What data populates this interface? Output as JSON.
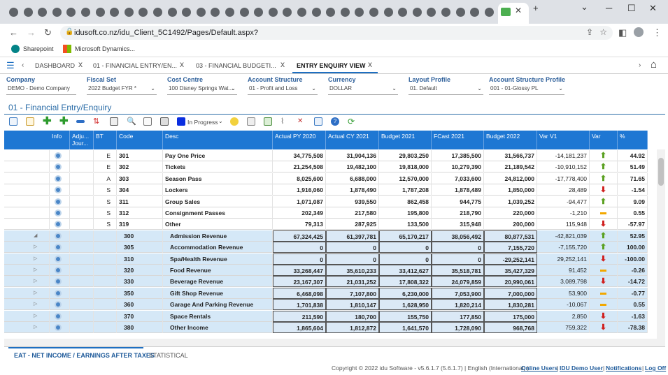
{
  "browser": {
    "address_url": "idusoft.co.nz/idu_Client_5C1492/Pages/Default.aspx?",
    "bookmarks": [
      {
        "label": "Sharepoint",
        "icon": "sharepoint-icon"
      },
      {
        "label": "Microsoft Dynamics...",
        "icon": "microsoft-icon"
      }
    ],
    "tab_icons": [
      "app-icon",
      "app-icon",
      "app-icon",
      "app-icon",
      "globe-icon",
      "globe-icon",
      "globe-icon",
      "globe-icon",
      "globe-icon",
      "globe-icon",
      "globe-icon",
      "globe-icon",
      "globe-icon",
      "linkedin-icon",
      "globe-icon",
      "globe-icon",
      "globe-icon",
      "globe-icon",
      "globe-icon",
      "github-icon",
      "app-icon",
      "app-icon",
      "app-icon",
      "app-icon",
      "app-icon",
      "app-icon",
      "gear-icon",
      "google-icon",
      "outlook-icon",
      "word-icon",
      "globe-icon",
      "app-icon",
      "app-icon",
      "spreadsheet-icon"
    ]
  },
  "app": {
    "tabs": [
      {
        "label": "DASHBOARD",
        "x": "X"
      },
      {
        "label": "01 - FINANCIAL ENTRY/EN...",
        "x": "X"
      },
      {
        "label": "03 - FINANCIAL BUDGETI...",
        "x": "X"
      },
      {
        "label": "ENTRY ENQUIRY VIEW",
        "x": "X"
      }
    ],
    "filters": [
      {
        "label": "Company",
        "value": "DEMO - Demo Company"
      },
      {
        "label": "Fiscal Set",
        "value": "2022 Budget FYR *"
      },
      {
        "label": "Cost Centre",
        "value": "100 Disney Springs Wat..."
      },
      {
        "label": "Account Structure",
        "value": "01 - Profit and Loss"
      },
      {
        "label": "Currency",
        "value": "DOLLAR"
      },
      {
        "label": "Layout Profile",
        "value": "01. Default"
      },
      {
        "label": "Account Structure Profile",
        "value": "001 - 01-Glossy PL"
      }
    ],
    "page_title": "01 - Financial Entry/Enquiry",
    "status_select": "In Progress",
    "columns": [
      "Info",
      "Adju... Jour...",
      "BT",
      "Code",
      "Desc",
      "Actual PY 2020",
      "Actual CY 2021",
      "Budget 2021",
      "FCast 2021",
      "Budget 2022",
      "Var V1",
      "Var",
      "%"
    ],
    "rows": [
      {
        "bt": "E",
        "code": "301",
        "desc": "Pay One Price",
        "py": "34,775,508",
        "cy": "31,904,136",
        "b21": "29,803,250",
        "fc": "17,385,500",
        "b22": "31,566,737",
        "var": "-14,181,237",
        "dir": "up",
        "pct": "44.92",
        "blue": false
      },
      {
        "bt": "E",
        "code": "302",
        "desc": "Tickets",
        "py": "21,254,508",
        "cy": "19,482,100",
        "b21": "19,818,000",
        "fc": "10,279,390",
        "b22": "21,189,542",
        "var": "-10,910,152",
        "dir": "up",
        "pct": "51.49",
        "blue": false
      },
      {
        "bt": "A",
        "code": "303",
        "desc": "Season Pass",
        "py": "8,025,600",
        "cy": "6,688,000",
        "b21": "12,570,000",
        "fc": "7,033,600",
        "b22": "24,812,000",
        "var": "-17,778,400",
        "dir": "up",
        "pct": "71.65",
        "blue": false
      },
      {
        "bt": "S",
        "code": "304",
        "desc": "Lockers",
        "py": "1,916,060",
        "cy": "1,878,490",
        "b21": "1,787,208",
        "fc": "1,878,489",
        "b22": "1,850,000",
        "var": "28,489",
        "dir": "down",
        "pct": "-1.54",
        "blue": false
      },
      {
        "bt": "S",
        "code": "311",
        "desc": "Group Sales",
        "py": "1,071,087",
        "cy": "939,550",
        "b21": "862,458",
        "fc": "944,775",
        "b22": "1,039,252",
        "var": "-94,477",
        "dir": "up",
        "pct": "9.09",
        "blue": false
      },
      {
        "bt": "S",
        "code": "312",
        "desc": "Consignment Passes",
        "py": "202,349",
        "cy": "217,580",
        "b21": "195,800",
        "fc": "218,790",
        "b22": "220,000",
        "var": "-1,210",
        "dir": "flat",
        "pct": "0.55",
        "blue": false
      },
      {
        "bt": "S",
        "code": "319",
        "desc": "Other",
        "py": "79,313",
        "cy": "287,925",
        "b21": "133,500",
        "fc": "315,948",
        "b22": "200,000",
        "var": "115,948",
        "dir": "down",
        "pct": "-57.97",
        "blue": false
      },
      {
        "bt": "",
        "code": "300",
        "desc": "Admission Revenue",
        "py": "67,324,425",
        "cy": "61,397,781",
        "b21": "65,170,217",
        "fc": "38,056,492",
        "b22": "80,877,531",
        "var": "-42,821,039",
        "dir": "up",
        "pct": "52.95",
        "blue": true,
        "tri": "◢"
      },
      {
        "bt": "",
        "code": "305",
        "desc": "Accommodation Revenue",
        "py": "0",
        "cy": "0",
        "b21": "0",
        "fc": "0",
        "b22": "7,155,720",
        "var": "-7,155,720",
        "dir": "up",
        "pct": "100.00",
        "blue": true,
        "tri": "▷"
      },
      {
        "bt": "",
        "code": "310",
        "desc": "Spa/Health Revenue",
        "py": "0",
        "cy": "0",
        "b21": "0",
        "fc": "0",
        "b22": "-29,252,141",
        "var": "29,252,141",
        "dir": "down",
        "pct": "-100.00",
        "blue": true,
        "tri": "▷"
      },
      {
        "bt": "",
        "code": "320",
        "desc": "Food Revenue",
        "py": "33,268,447",
        "cy": "35,610,233",
        "b21": "33,412,627",
        "fc": "35,518,781",
        "b22": "35,427,329",
        "var": "91,452",
        "dir": "flat",
        "pct": "-0.26",
        "blue": true,
        "tri": "▷"
      },
      {
        "bt": "",
        "code": "330",
        "desc": "Beverage Revenue",
        "py": "23,167,307",
        "cy": "21,031,252",
        "b21": "17,808,322",
        "fc": "24,079,859",
        "b22": "20,990,061",
        "var": "3,089,798",
        "dir": "down",
        "pct": "-14.72",
        "blue": true,
        "tri": "▷"
      },
      {
        "bt": "",
        "code": "350",
        "desc": "Gift Shop Revenue",
        "py": "6,468,098",
        "cy": "7,107,800",
        "b21": "6,230,000",
        "fc": "7,053,900",
        "b22": "7,000,000",
        "var": "53,900",
        "dir": "flat",
        "pct": "-0.77",
        "blue": true,
        "tri": "▷"
      },
      {
        "bt": "",
        "code": "360",
        "desc": "Garage And Parking Revenue",
        "py": "1,701,838",
        "cy": "1,810,147",
        "b21": "1,628,950",
        "fc": "1,820,214",
        "b22": "1,830,281",
        "var": "-10,067",
        "dir": "flat",
        "pct": "0.55",
        "blue": true,
        "tri": "▷"
      },
      {
        "bt": "",
        "code": "370",
        "desc": "Space Rentals",
        "py": "211,590",
        "cy": "180,700",
        "b21": "155,750",
        "fc": "177,850",
        "b22": "175,000",
        "var": "2,850",
        "dir": "down",
        "pct": "-1.63",
        "blue": true,
        "tri": "▷"
      },
      {
        "bt": "",
        "code": "380",
        "desc": "Other Income",
        "py": "1,865,604",
        "cy": "1,812,872",
        "b21": "1,641,570",
        "fc": "1,728,090",
        "b22": "968,768",
        "var": "759,322",
        "dir": "down",
        "pct": "-78.38",
        "blue": true,
        "tri": "▷"
      }
    ],
    "bottom_tabs": [
      "EAT - NET INCOME / EARNINGS AFTER TAXES",
      "STATISTICAL"
    ],
    "footer": {
      "copyright": "Copyright © 2022 idu Software - v5.6.1.7 (5.6.1.7) | English (International) |",
      "links": [
        "Online Users",
        "IDU Demo User",
        "Notifications",
        "Log Off"
      ]
    }
  }
}
